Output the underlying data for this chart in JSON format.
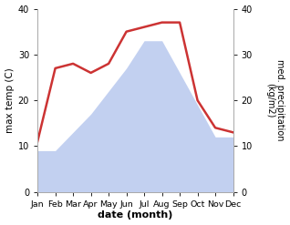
{
  "months": [
    "Jan",
    "Feb",
    "Mar",
    "Apr",
    "May",
    "Jun",
    "Jul",
    "Aug",
    "Sep",
    "Oct",
    "Nov",
    "Dec"
  ],
  "max_temp": [
    9,
    9,
    13,
    17,
    22,
    27,
    33,
    33,
    26,
    19,
    12,
    12
  ],
  "precipitation": [
    11,
    27,
    28,
    26,
    28,
    35,
    36,
    37,
    37,
    20,
    14,
    13
  ],
  "temp_color": "#b8c8ee",
  "precip_color": "#cc3333",
  "ylabel_left": "max temp (C)",
  "ylabel_right": "med. precipitation\n(kg/m2)",
  "xlabel": "date (month)",
  "ylim_left": [
    0,
    40
  ],
  "ylim_right": [
    0,
    40
  ],
  "yticks": [
    0,
    10,
    20,
    30,
    40
  ],
  "background_color": "#ffffff"
}
